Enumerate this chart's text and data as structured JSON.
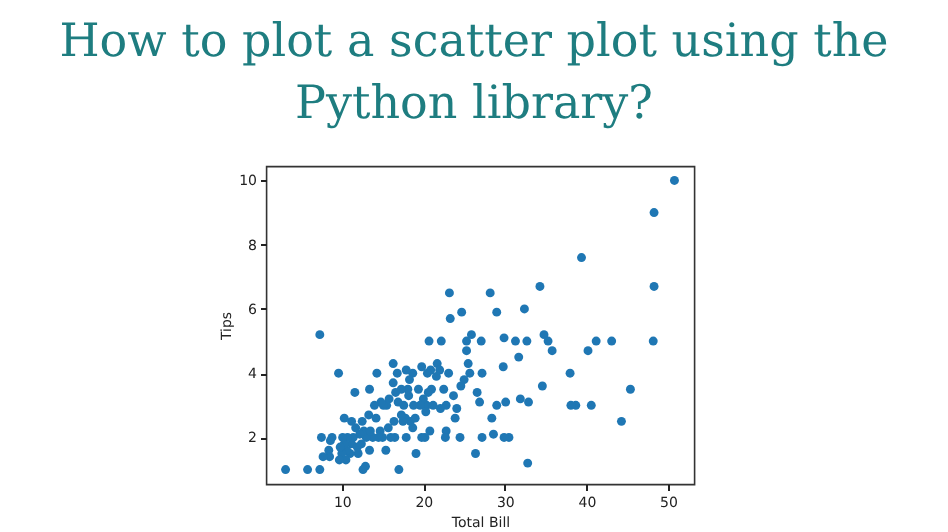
{
  "chart_data": {
    "type": "scatter",
    "title": "How to plot a scatter plot using the Python library?",
    "xlabel": "Total Bill",
    "ylabel": "Tips",
    "x": [
      50.8,
      48.3,
      48.3,
      48.2,
      39.4,
      44.3,
      45.4,
      43.1,
      41.2,
      40.6,
      38.7,
      38.1,
      38.0,
      40.2,
      35.8,
      34.8,
      35.3,
      34.6,
      34.3,
      32.9,
      32.7,
      32.4,
      31.9,
      31.7,
      31.3,
      30.5,
      30.1,
      29.9,
      29.9,
      29.8,
      29.0,
      29.0,
      28.6,
      28.4,
      28.2,
      27.2,
      27.2,
      27.1,
      26.9,
      26.6,
      26.4,
      25.9,
      25.7,
      25.5,
      25.3,
      25.3,
      25.0,
      24.7,
      24.6,
      24.5,
      24.1,
      23.9,
      23.7,
      23.3,
      23.2,
      23.1,
      22.8,
      22.8,
      22.7,
      22.5,
      22.2,
      22.1,
      21.7,
      21.6,
      21.2,
      21.0,
      20.9,
      20.8,
      20.7,
      20.6,
      20.5,
      20.4,
      20.3,
      20.2,
      20.0,
      19.8,
      19.8,
      19.6,
      19.4,
      19.1,
      18.8,
      18.7,
      18.7,
      18.4,
      18.3,
      18.2,
      18.1,
      17.9,
      17.9,
      17.8,
      17.6,
      17.5,
      17.3,
      17.3,
      17.0,
      16.9,
      16.8,
      16.6,
      16.5,
      16.4,
      16.3,
      16.3,
      16.0,
      15.8,
      15.7,
      15.5,
      15.4,
      15.1,
      15.0,
      14.8,
      14.7,
      14.5,
      14.3,
      14.2,
      14.0,
      13.8,
      13.4,
      13.4,
      13.3,
      13.0,
      12.9,
      12.7,
      12.6,
      12.5,
      12.4,
      12.2,
      12.0,
      11.9,
      11.7,
      11.6,
      11.4,
      11.2,
      11.2,
      11.0,
      10.7,
      10.6,
      10.5,
      10.3,
      10.3,
      10.1,
      10.0,
      9.8,
      9.7,
      9.6,
      8.8,
      8.6,
      8.5,
      8.4,
      7.7,
      7.5,
      7.3,
      7.3,
      5.8,
      3.1,
      32.8,
      13.5,
      19.0,
      22.0
    ],
    "values": [
      10,
      9,
      6.7,
      5,
      7.6,
      2.5,
      3.5,
      5,
      5,
      3,
      3,
      3,
      4,
      4.7,
      4.7,
      5.2,
      5,
      3.6,
      6.7,
      3.1,
      5,
      6,
      3.2,
      4.5,
      5,
      2,
      3.1,
      2,
      5.1,
      4.2,
      5.9,
      3,
      2.1,
      2.6,
      6.5,
      4,
      2,
      5,
      3.1,
      3.4,
      1.5,
      5.2,
      4,
      4.3,
      4.7,
      5,
      3.8,
      5.9,
      3.6,
      2,
      2.9,
      2.6,
      3.3,
      5.7,
      6.5,
      4,
      2.2,
      3,
      2,
      3.5,
      5,
      2.9,
      4.3,
      3.9,
      3,
      3.5,
      4.1,
      2.2,
      5,
      3.4,
      4,
      3,
      2.8,
      2,
      3.2,
      4.2,
      2,
      3,
      3.5,
      1.5,
      3,
      4,
      2.3,
      2.5,
      3.8,
      3.3,
      3.5,
      4.1,
      2,
      2.6,
      3,
      2.5,
      3.5,
      2.7,
      1,
      3.1,
      4,
      3.4,
      2,
      2.5,
      4.3,
      3.7,
      2,
      3.2,
      2.3,
      3,
      1.6,
      3,
      2,
      3.1,
      2.2,
      2,
      4,
      2.6,
      3,
      2,
      3.5,
      1.6,
      2.7,
      2,
      1.1,
      2.2,
      1,
      2.5,
      1.8,
      2.1,
      1.5,
      1.7,
      2.3,
      3.4,
      2,
      1.8,
      2.5,
      1.5,
      2,
      1.6,
      1.3,
      2.6,
      1.8,
      2,
      1.5,
      1.7,
      1.3,
      4,
      2,
      1.9,
      1.4,
      1.6,
      1.4,
      2,
      5.2,
      1,
      1,
      1,
      1.2,
      2.2,
      2.6,
      4.1
    ],
    "color": "#1f77b4",
    "marker": "circle",
    "grid": false,
    "xlim": [
      0.7,
      53.2
    ],
    "ylim": [
      0.55,
      10.45
    ],
    "xticks": [
      10,
      20,
      30,
      40,
      50
    ],
    "yticks": [
      2,
      4,
      6,
      8,
      10
    ]
  }
}
